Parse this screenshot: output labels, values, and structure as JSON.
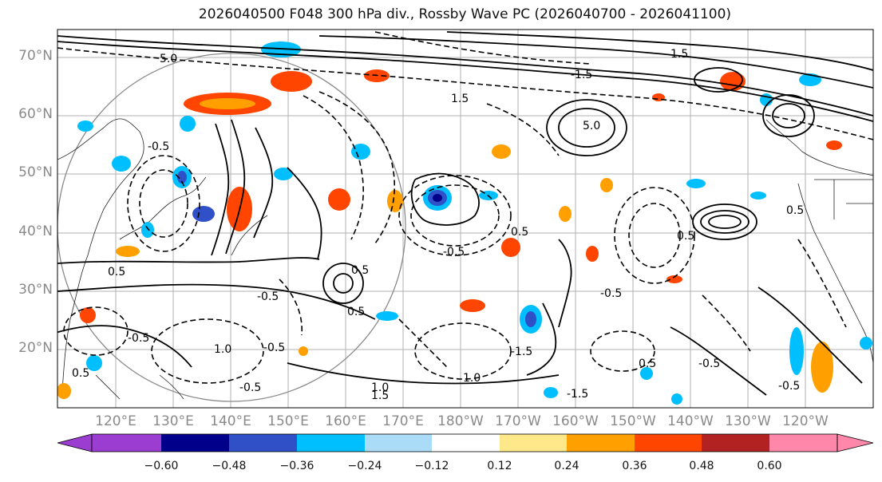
{
  "title": "2026040500 F048 300 hPa div., Rossby Wave PC (2026040700 - 2026041100)",
  "lat_labels": [
    "70°N",
    "60°N",
    "50°N",
    "40°N",
    "30°N",
    "20°N"
  ],
  "lon_labels": [
    "120°E",
    "130°E",
    "140°E",
    "150°E",
    "160°E",
    "170°E",
    "180°W",
    "170°W",
    "160°W",
    "150°W",
    "140°W",
    "130°W",
    "120°W"
  ],
  "colorbar": {
    "tick_labels": [
      "−0.60",
      "−0.48",
      "−0.36",
      "−0.24",
      "−0.12",
      "0.12",
      "0.24",
      "0.36",
      "0.48",
      "0.60"
    ],
    "colors": [
      "#9b3dd1",
      "#00008b",
      "#3050c8",
      "#00bfff",
      "#aadcf8",
      "#ffffff",
      "#ffe88a",
      "#ffa000",
      "#ff4500",
      "#b22222",
      "#ff88aa"
    ]
  },
  "contour_labels": [
    "5.0",
    "5.0",
    "0.5",
    "0.5",
    "1.5",
    "1.0",
    "-0.5",
    "-0.5",
    "-0.5",
    "-0.5",
    "-0.5",
    "0.5",
    "0.5",
    "0.5",
    "1.0",
    "1.0",
    "1.5",
    "-1.5",
    "-1.5",
    "0.5",
    "-0.5",
    "-1.5",
    "1.5",
    "-0.5",
    "-0.5",
    "0.5",
    "0.5",
    "-0.5"
  ]
}
